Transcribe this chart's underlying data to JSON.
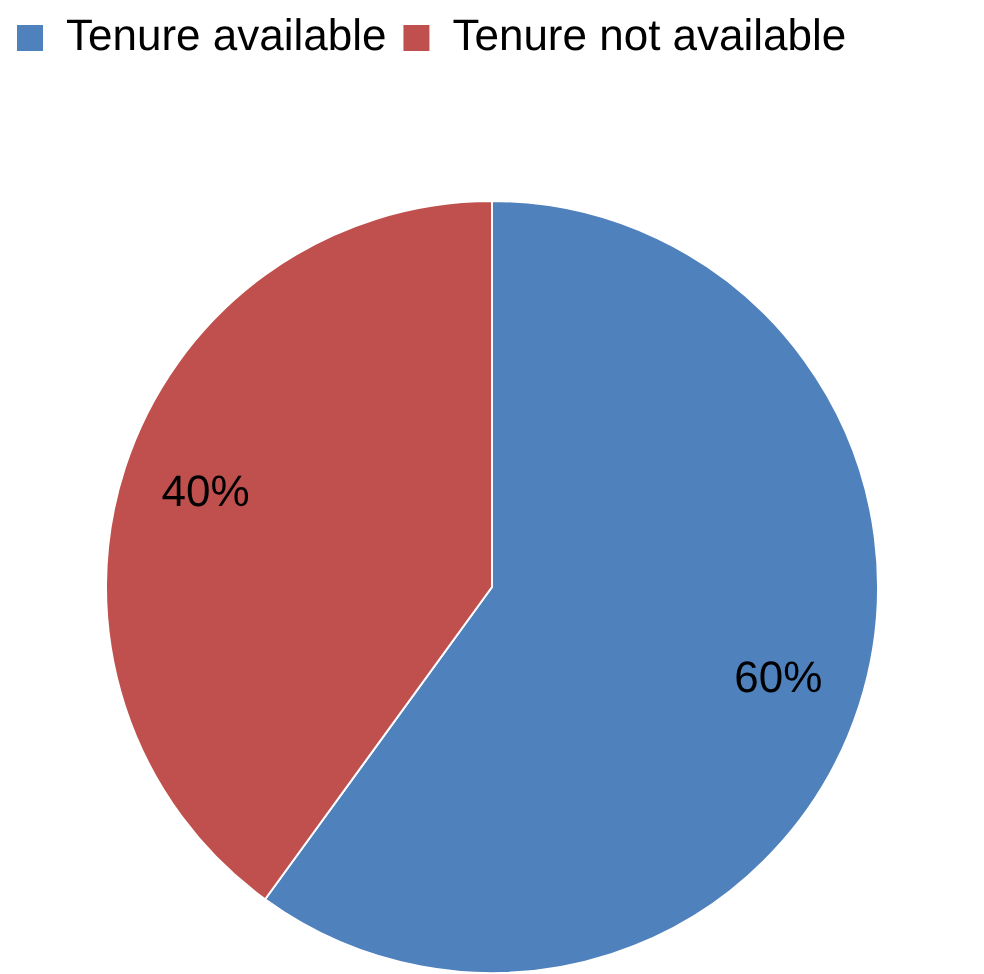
{
  "chart_data": {
    "type": "pie",
    "categories": [
      "Tenure available",
      "Tenure not available"
    ],
    "values": [
      60,
      40
    ],
    "colors": [
      "#4f81bd",
      "#c0504d"
    ],
    "value_labels": [
      "60%",
      "40%"
    ],
    "legend": "top"
  }
}
